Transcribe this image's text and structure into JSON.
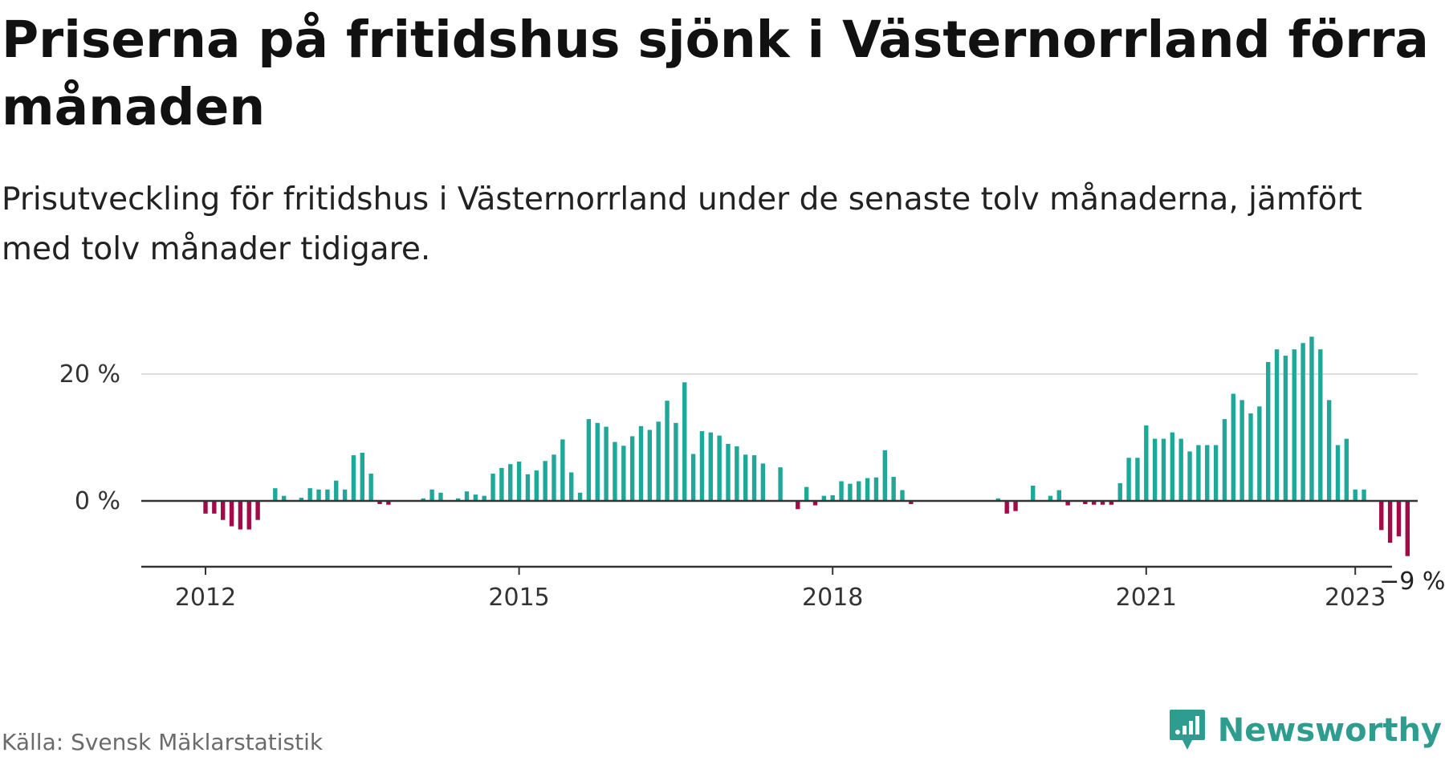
{
  "title": "Priserna på fritidshus sjönk i Västernorrland förra månaden",
  "subtitle": "Prisutveckling för fritidshus i Västernorrland under de senaste tolv månaderna, jämfört med tolv månader tidigare.",
  "source": "Källa: Svensk Mäklarstatistik",
  "brand": {
    "name": "Newsworthy",
    "icon": "newsworthy-logo-icon"
  },
  "colors": {
    "positive": "#1ea89a",
    "negative": "#a30a48",
    "grid": "#dddddd",
    "axis": "#333333",
    "brand": "#2e9d8f"
  },
  "chart_data": {
    "type": "bar",
    "x_start": "2012-01",
    "x_end": "2023-02",
    "x_ticks": [
      "2012",
      "2015",
      "2018",
      "2021",
      "2023"
    ],
    "y_ticks": [
      "0 %",
      "20 %"
    ],
    "ylim": [
      -10,
      26
    ],
    "grid": true,
    "end_label": "−9 %",
    "values": [
      -2,
      -2,
      -3,
      -4,
      -4.5,
      -4.5,
      -3,
      0,
      2,
      0.8,
      0,
      0.5,
      2,
      1.8,
      1.8,
      3.2,
      1.8,
      7.2,
      7.6,
      4.3,
      -0.5,
      -0.6,
      0,
      0,
      0,
      0.4,
      1.8,
      1.3,
      0,
      0.4,
      1.5,
      1,
      0.8,
      4.3,
      5.2,
      5.8,
      6.2,
      4.2,
      4.8,
      6.3,
      7.3,
      9.7,
      4.5,
      1.3,
      12.9,
      12.3,
      11.7,
      9.3,
      8.7,
      10.2,
      11.8,
      11.2,
      12.5,
      15.8,
      12.3,
      18.7,
      7.4,
      11,
      10.8,
      10.3,
      9,
      8.6,
      7.3,
      7.2,
      5.9,
      0,
      5.3,
      0,
      -1.3,
      2.2,
      -0.7,
      0.8,
      0.9,
      3.1,
      2.7,
      3.1,
      3.6,
      3.7,
      8,
      3.8,
      1.7,
      -0.5,
      0,
      0,
      0,
      0,
      0,
      0,
      0,
      0,
      0,
      0.4,
      -2,
      -1.6,
      0,
      2.4,
      0,
      0.8,
      1.7,
      -0.7,
      0,
      -0.5,
      -0.6,
      -0.6,
      -0.6,
      2.8,
      6.8,
      6.8,
      11.9,
      9.8,
      9.8,
      10.8,
      9.8,
      7.8,
      8.8,
      8.8,
      8.8,
      12.9,
      16.9,
      15.9,
      13.8,
      14.9,
      21.9,
      23.9,
      22.9,
      23.9,
      24.9,
      25.9,
      23.9,
      15.9,
      8.8,
      9.8,
      1.8,
      1.8,
      0,
      -4.6,
      -6.6,
      -5.6,
      -8.7
    ]
  }
}
